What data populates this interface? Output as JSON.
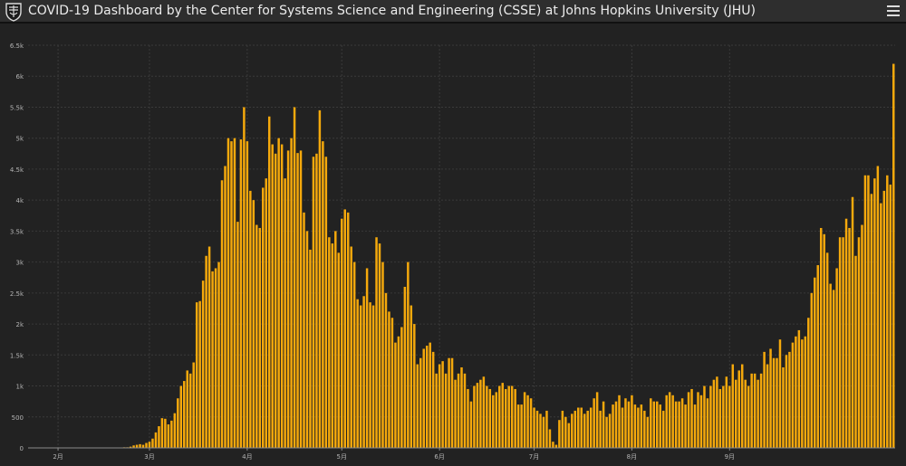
{
  "header": {
    "title": "COVID-19 Dashboard by the Center for Systems Science and Engineering (CSSE) at Johns Hopkins University (JHU)",
    "menu_icon": "hamburger-menu-icon",
    "logo_icon": "jhu-shield-icon"
  },
  "colors": {
    "bar": "#f5a90c",
    "background": "#222222",
    "grid": "#3a3a3a",
    "axis_text": "#b4b4b4"
  },
  "chart_data": {
    "type": "bar",
    "title": "",
    "xlabel": "",
    "ylabel": "",
    "ylim": [
      0,
      6500
    ],
    "y_ticks": [
      "0",
      "500",
      "1k",
      "1.5k",
      "2k",
      "2.5k",
      "3k",
      "3.5k",
      "4k",
      "4.5k",
      "5k",
      "5.5k",
      "6k",
      "6.5k"
    ],
    "y_tick_values": [
      0,
      500,
      1000,
      1500,
      2000,
      2500,
      3000,
      3500,
      4000,
      4500,
      5000,
      5500,
      6000,
      6500
    ],
    "x_ticks": [
      "2月",
      "3月",
      "4月",
      "5月",
      "6月",
      "7月",
      "8月",
      "9月"
    ],
    "x_tick_days": [
      9,
      38,
      69,
      99,
      130,
      160,
      191,
      222
    ],
    "start_date": "2020-01-23",
    "grid": true,
    "values": [
      0,
      0,
      0,
      0,
      0,
      0,
      0,
      0,
      0,
      0,
      0,
      0,
      0,
      0,
      0,
      0,
      0,
      0,
      0,
      0,
      0,
      0,
      0,
      0,
      0,
      0,
      0,
      0,
      0,
      0,
      10,
      10,
      20,
      40,
      50,
      60,
      50,
      80,
      100,
      150,
      250,
      350,
      480,
      470,
      380,
      440,
      560,
      800,
      1000,
      1080,
      1250,
      1200,
      1380,
      2350,
      2370,
      2700,
      3100,
      3250,
      2850,
      2900,
      3000,
      4320,
      4550,
      5000,
      4950,
      5000,
      3650,
      4980,
      5500,
      4950,
      4150,
      4000,
      3600,
      3550,
      4200,
      4350,
      5350,
      4900,
      4750,
      5000,
      4900,
      4350,
      4800,
      5000,
      5500,
      4760,
      4800,
      3800,
      3500,
      3200,
      4700,
      4750,
      5450,
      4950,
      4700,
      3400,
      3300,
      3500,
      3150,
      3700,
      3850,
      3800,
      3250,
      3000,
      2400,
      2300,
      2450,
      2900,
      2350,
      2300,
      3400,
      3300,
      3000,
      2500,
      2200,
      2100,
      1700,
      1800,
      1950,
      2600,
      3000,
      2300,
      2000,
      1350,
      1450,
      1600,
      1650,
      1700,
      1550,
      1200,
      1350,
      1400,
      1200,
      1450,
      1450,
      1100,
      1200,
      1300,
      1200,
      950,
      750,
      1000,
      1050,
      1100,
      1150,
      1000,
      950,
      850,
      900,
      1000,
      1050,
      950,
      1000,
      1000,
      950,
      700,
      700,
      900,
      850,
      800,
      650,
      600,
      550,
      500,
      600,
      300,
      100,
      50,
      450,
      600,
      500,
      400,
      550,
      600,
      650,
      650,
      550,
      600,
      650,
      800,
      900,
      600,
      750,
      500,
      550,
      700,
      750,
      850,
      650,
      800,
      750,
      850,
      700,
      650,
      700,
      600,
      500,
      800,
      750,
      750,
      700,
      600,
      850,
      900,
      850,
      750,
      750,
      800,
      700,
      900,
      950,
      700,
      900,
      850,
      1000,
      800,
      1000,
      1100,
      1150,
      950,
      1000,
      1150,
      1000,
      1350,
      1100,
      1250,
      1350,
      1100,
      1000,
      1200,
      1200,
      1100,
      1200,
      1550,
      1350,
      1600,
      1450,
      1450,
      1750,
      1300,
      1500,
      1550,
      1700,
      1800,
      1900,
      1750,
      1800,
      2100,
      2500,
      2750,
      2950,
      3550,
      3450,
      3150,
      2650,
      2550,
      2900,
      3400,
      3400,
      3700,
      3550,
      4050,
      3100,
      3400,
      3600,
      4400,
      4400,
      4100,
      4350,
      4550,
      3950,
      4150,
      4400,
      4250,
      6200
    ]
  }
}
